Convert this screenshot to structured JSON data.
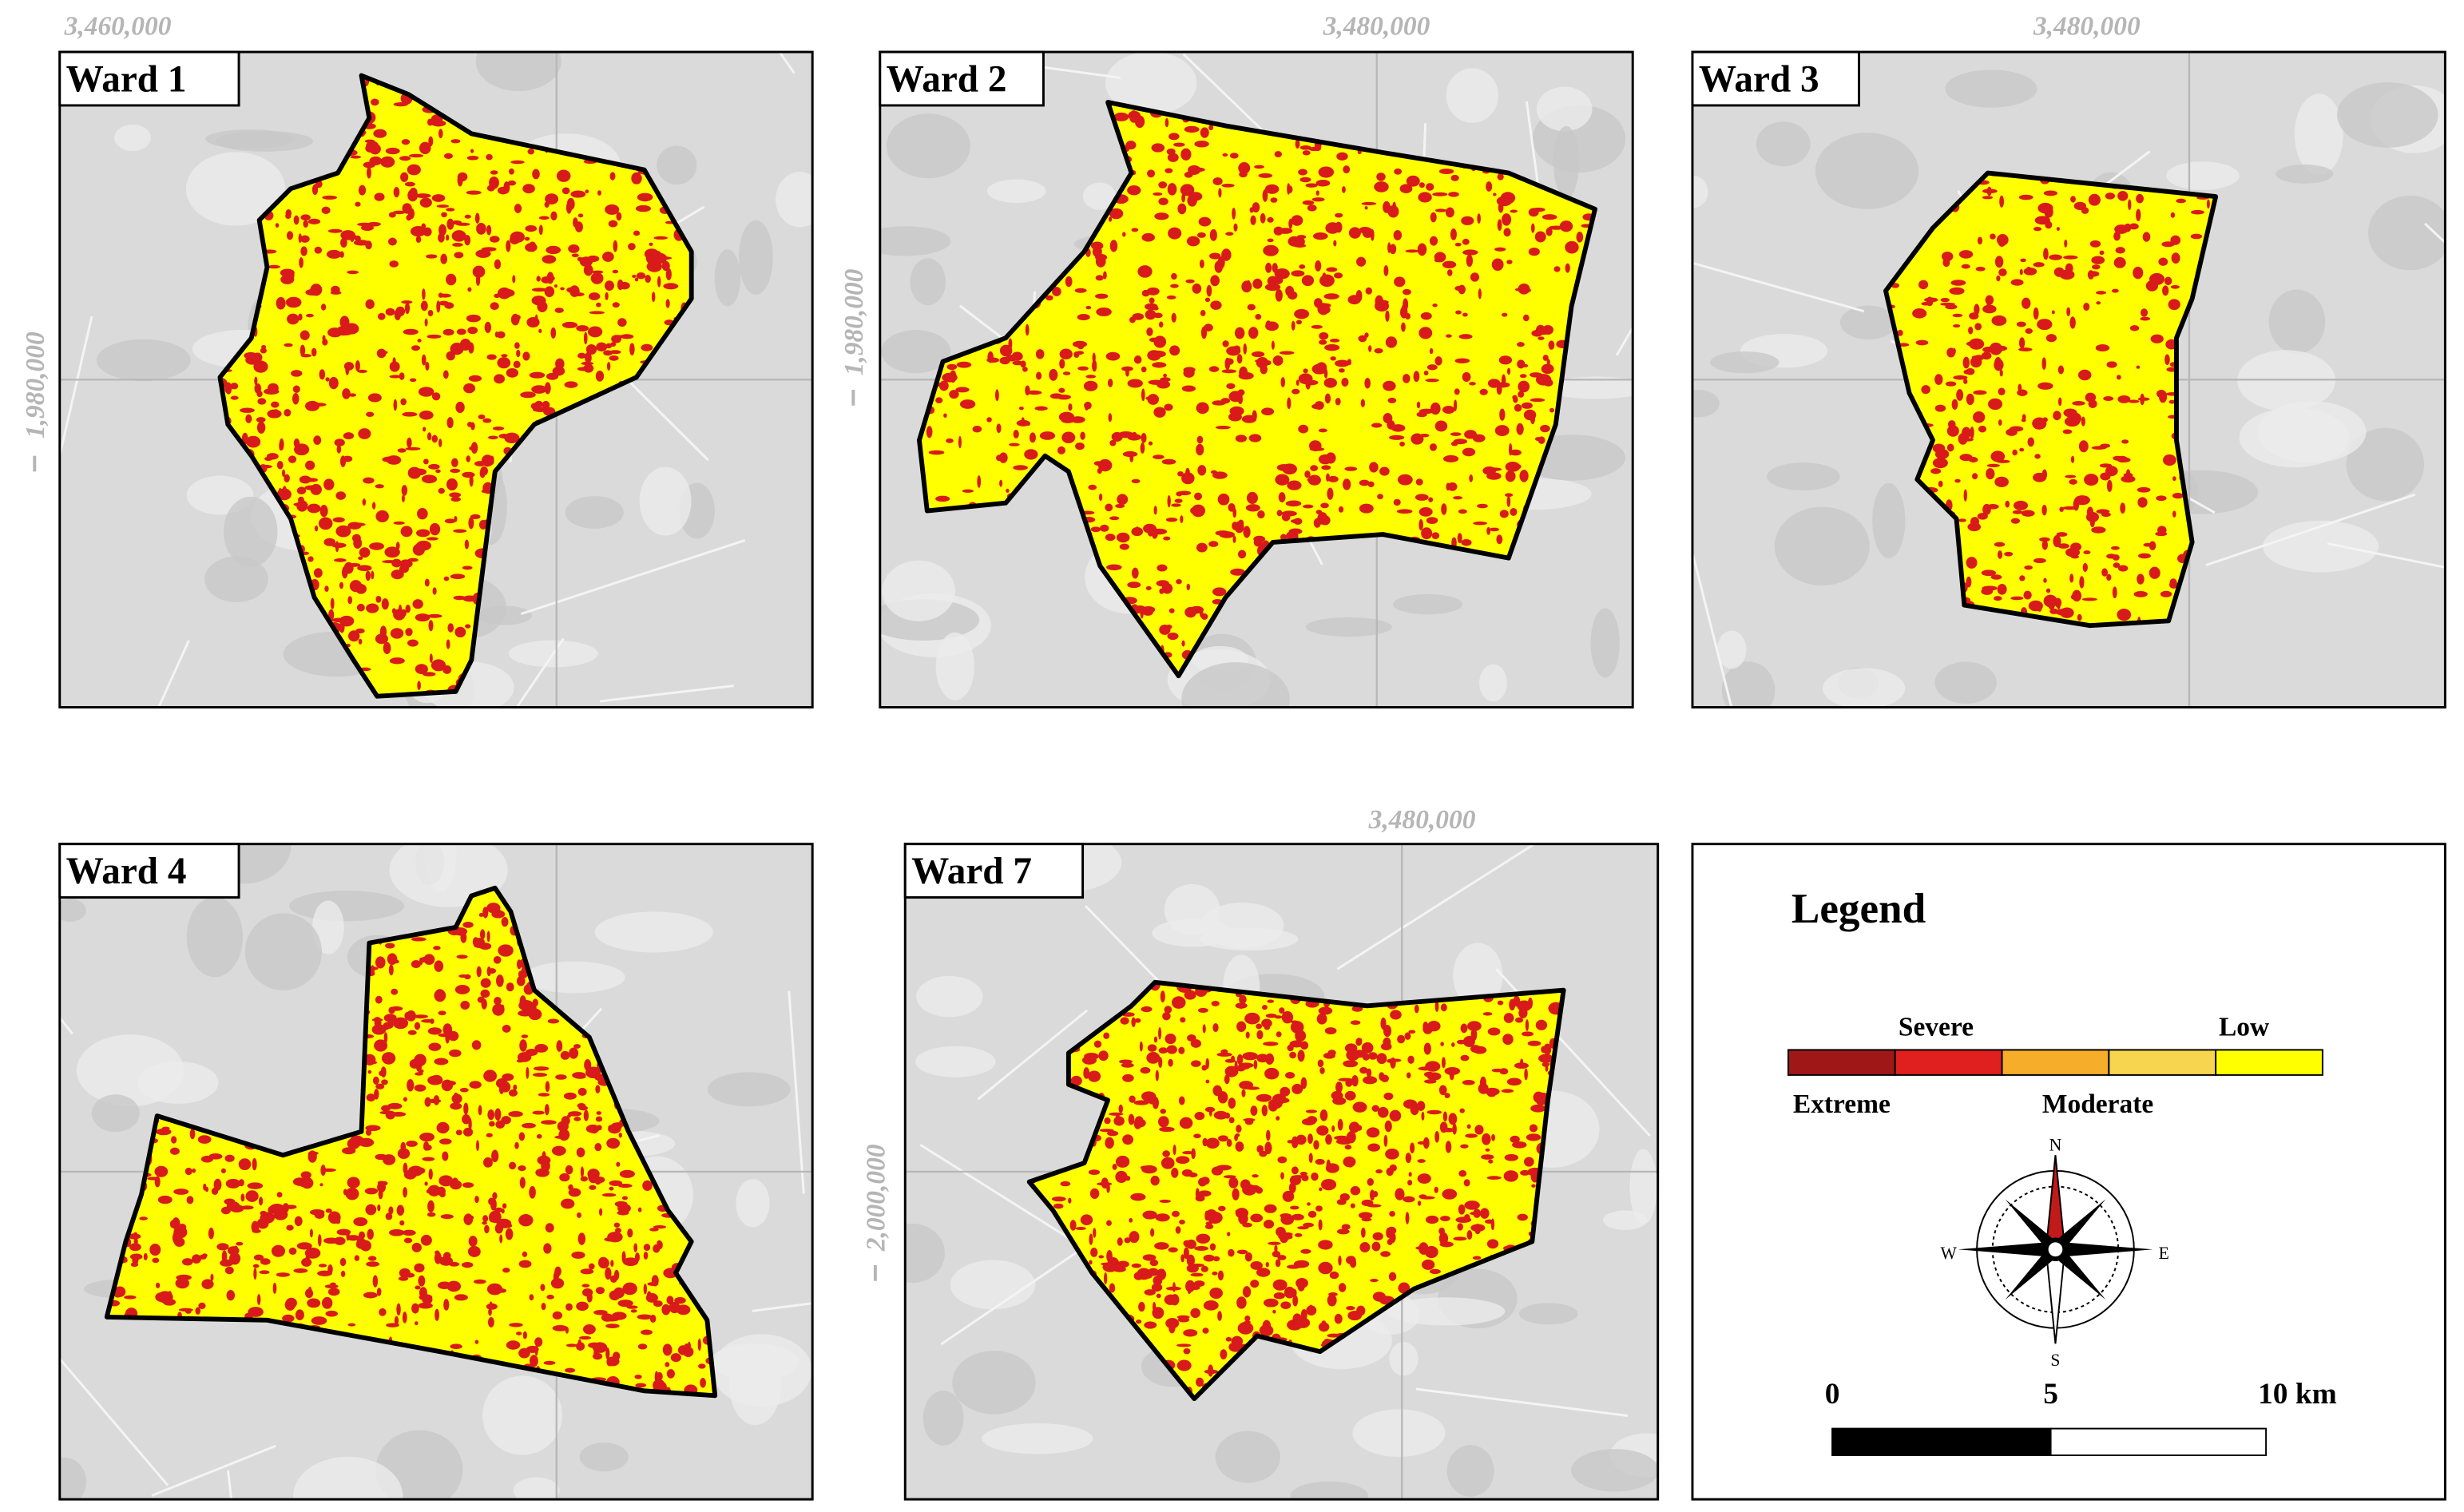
{
  "panels": [
    {
      "label": "Ward 1",
      "coords": [
        "3,460,000",
        "1,980,000"
      ]
    },
    {
      "label": "Ward 2",
      "coords": [
        "3,480,000",
        "1,980,000"
      ]
    },
    {
      "label": "Ward 3",
      "coords": [
        "3,480,000"
      ]
    },
    {
      "label": "Ward 4",
      "coords": []
    },
    {
      "label": "Ward 7",
      "coords": [
        "3,480,000",
        "2,000,000"
      ]
    }
  ],
  "legend": {
    "title": "Legend",
    "severe": "Severe",
    "low": "Low",
    "extreme": "Extreme",
    "moderate": "Moderate",
    "north": "N",
    "south": "S",
    "west": "W",
    "east": "E",
    "scale": [
      "0",
      "5",
      "10 km"
    ]
  }
}
